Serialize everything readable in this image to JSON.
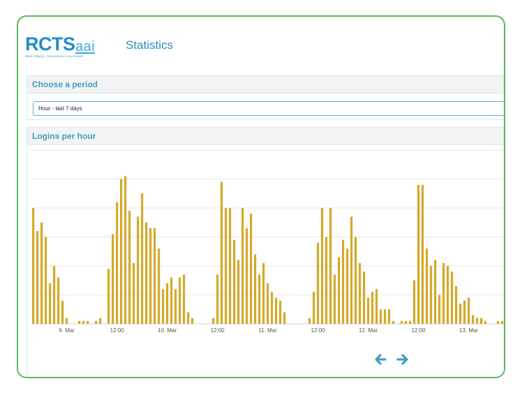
{
  "brand": {
    "logo_text": "RCTS",
    "logo_suffix": "aai",
    "logo_tagline": "REDE CIÊNCIA, TECNOLOGIA E SOCIEDADE",
    "title": "Statistics"
  },
  "period": {
    "heading": "Choose a period",
    "selected": "Hour - last 7 days"
  },
  "logins": {
    "heading": "Logins per hour"
  },
  "colors": {
    "bar": "#d4a92a",
    "accent": "#4a9ac3",
    "frame_border": "#5cb85c",
    "grid": "#e6e6e6"
  },
  "icons": {
    "prev": "arrow-left-icon",
    "next": "arrow-right-icon"
  },
  "chart_data": {
    "type": "bar",
    "title": "Logins per hour",
    "x_ticks": [
      "9. Mar",
      "12:00",
      "10. Mar",
      "12:00",
      "11. Mar",
      "12:00",
      "12. Mar",
      "12:00",
      "13. Mar"
    ],
    "ylim": [
      0,
      60
    ],
    "grid": true,
    "series": [
      {
        "values": [
          40,
          32,
          35,
          30,
          14,
          20,
          16,
          8,
          2,
          0,
          0,
          1,
          1,
          1,
          0,
          1,
          2,
          0,
          19,
          31,
          42,
          50,
          51,
          39,
          21,
          37,
          45,
          35,
          33,
          33,
          26,
          12,
          14,
          16,
          12,
          16,
          17,
          4,
          2,
          0,
          0,
          0,
          0,
          2,
          17,
          49,
          40,
          40,
          29,
          22,
          40,
          33,
          38,
          24,
          17,
          21,
          14,
          11,
          9,
          8,
          4,
          0,
          0,
          0,
          0,
          0,
          2,
          11,
          28,
          40,
          30,
          40,
          17,
          23,
          29,
          26,
          37,
          30,
          21,
          18,
          9,
          11,
          12,
          5,
          5,
          5,
          1,
          0,
          1,
          1,
          1,
          15,
          48,
          48,
          26,
          20,
          22,
          10,
          21,
          20,
          18,
          13,
          7,
          8,
          9,
          3,
          2,
          2,
          1,
          0,
          0,
          1,
          1
        ]
      }
    ],
    "xlabel": "",
    "ylabel": ""
  }
}
